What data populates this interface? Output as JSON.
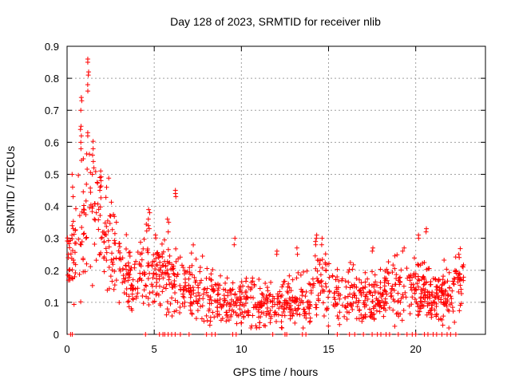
{
  "chart_data": {
    "type": "scatter",
    "title": "Day 128 of 2023, SRMTID for receiver nlib",
    "xlabel": "GPS time / hours",
    "ylabel": "SRMTID / TECUs",
    "xlim": [
      0,
      24
    ],
    "ylim": [
      0,
      0.9
    ],
    "xticks": [
      0,
      5,
      10,
      15,
      20
    ],
    "yticks": [
      0,
      0.1,
      0.2,
      0.3,
      0.4,
      0.5,
      0.6,
      0.7,
      0.8,
      0.9
    ],
    "grid": true,
    "marker": "+",
    "color": "#ff0000",
    "trend": {
      "x": [
        0.0,
        0.3,
        0.6,
        0.9,
        1.2,
        1.4,
        1.7,
        2.0,
        2.4,
        2.8,
        3.2,
        3.6,
        4.0,
        4.5,
        5.0,
        5.5,
        6.0,
        6.3,
        6.8,
        7.5,
        8.0,
        8.5,
        9.0,
        9.5,
        10.0,
        10.5,
        11.0,
        11.5,
        12.0,
        12.5,
        13.0,
        13.5,
        14.0,
        14.5,
        15.0,
        15.5,
        16.0,
        16.5,
        17.0,
        17.5,
        18.0,
        18.5,
        19.0,
        19.5,
        20.0,
        20.5,
        21.0,
        21.5,
        22.0,
        22.5,
        22.8
      ],
      "y": [
        0.2,
        0.25,
        0.33,
        0.38,
        0.4,
        0.42,
        0.37,
        0.33,
        0.28,
        0.24,
        0.2,
        0.17,
        0.17,
        0.22,
        0.2,
        0.18,
        0.16,
        0.17,
        0.15,
        0.14,
        0.12,
        0.12,
        0.1,
        0.11,
        0.12,
        0.12,
        0.1,
        0.1,
        0.1,
        0.11,
        0.1,
        0.11,
        0.13,
        0.16,
        0.15,
        0.13,
        0.12,
        0.12,
        0.11,
        0.1,
        0.12,
        0.14,
        0.14,
        0.12,
        0.15,
        0.13,
        0.11,
        0.12,
        0.13,
        0.16,
        0.17
      ]
    },
    "spikes": [
      {
        "x": 1.2,
        "ys": [
          0.86,
          0.85,
          0.82,
          0.81,
          0.78,
          0.76,
          0.62,
          0.63
        ]
      },
      {
        "x": 0.8,
        "ys": [
          0.74,
          0.73,
          0.7,
          0.65,
          0.64,
          0.62,
          0.6,
          0.58
        ]
      },
      {
        "x": 1.5,
        "ys": [
          0.58,
          0.56,
          0.54,
          0.52,
          0.5
        ]
      },
      {
        "x": 1.9,
        "ys": [
          0.49,
          0.48,
          0.46,
          0.45
        ]
      },
      {
        "x": 0.3,
        "ys": [
          0.5,
          0.46,
          0.43
        ]
      },
      {
        "x": 6.2,
        "ys": [
          0.45,
          0.44,
          0.43
        ]
      },
      {
        "x": 4.7,
        "ys": [
          0.39,
          0.38,
          0.36,
          0.34,
          0.33
        ]
      },
      {
        "x": 5.8,
        "ys": [
          0.36,
          0.35,
          0.32
        ]
      },
      {
        "x": 20.6,
        "ys": [
          0.33,
          0.32
        ]
      },
      {
        "x": 20.2,
        "ys": [
          0.31,
          0.3
        ]
      },
      {
        "x": 9.6,
        "ys": [
          0.3,
          0.28
        ]
      },
      {
        "x": 14.3,
        "ys": [
          0.31,
          0.3,
          0.29,
          0.28
        ]
      },
      {
        "x": 14.6,
        "ys": [
          0.3,
          0.28
        ]
      },
      {
        "x": 12.0,
        "ys": [
          0.26,
          0.25
        ]
      },
      {
        "x": 13.2,
        "ys": [
          0.27,
          0.25
        ]
      },
      {
        "x": 17.5,
        "ys": [
          0.27,
          0.26
        ]
      },
      {
        "x": 22.5,
        "ys": [
          0.25,
          0.24
        ]
      },
      {
        "x": 19.3,
        "ys": [
          0.27,
          0.26
        ]
      }
    ],
    "zero_points": [
      0.2,
      0.3,
      4.5,
      5.3,
      5.5,
      5.6,
      5.8,
      6.0,
      6.2,
      6.5,
      7.0,
      8.0,
      8.3,
      8.5,
      9.5,
      9.7,
      11.8,
      12.5,
      12.6,
      13.5,
      13.7,
      15.5,
      16.2,
      16.5,
      17.0,
      17.5,
      17.8,
      18.0,
      18.3,
      18.5,
      19.0,
      19.5,
      19.8,
      20.0,
      20.5,
      20.7,
      21.0,
      21.2,
      21.5,
      21.8,
      22.0,
      22.3
    ]
  }
}
